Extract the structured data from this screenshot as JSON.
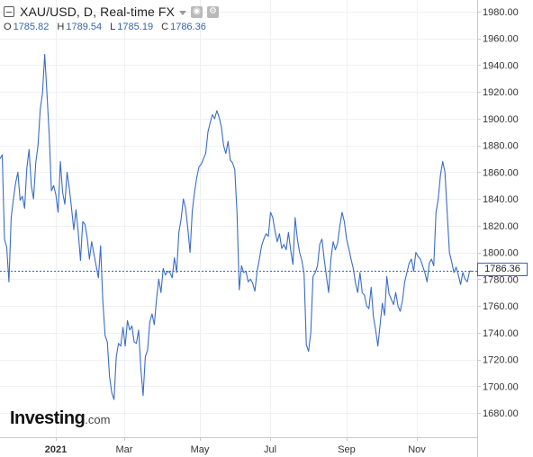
{
  "header": {
    "title": "XAU/USD, D, Real-time FX",
    "buttons": [
      {
        "icon": "eye-icon"
      },
      {
        "icon": "gear-icon"
      }
    ]
  },
  "ohlc": [
    {
      "key": "O",
      "value": "1785.82"
    },
    {
      "key": "H",
      "value": "1789.54"
    },
    {
      "key": "L",
      "value": "1785.19"
    },
    {
      "key": "C",
      "value": "1786.36"
    }
  ],
  "logo": {
    "main": "Investing",
    "suffix": ".com"
  },
  "last_price": "1786.36",
  "colors": {
    "line": "#3a6cc8",
    "price_line": "#3a63a7",
    "grid": "#eef0f3",
    "axis_text": "#333333"
  },
  "chart_data": {
    "type": "line",
    "x_tick_labels": [
      "2021",
      "Mar",
      "May",
      "Jul",
      "Sep",
      "Nov"
    ],
    "y_ticks": [
      1680,
      1700,
      1720,
      1740,
      1760,
      1780,
      1800,
      1820,
      1840,
      1860,
      1880,
      1900,
      1920,
      1940,
      1960,
      1980
    ],
    "y_tick_labels": [
      "1680.00",
      "1700.00",
      "1720.00",
      "1740.00",
      "1760.00",
      "1780.00",
      "1800.00",
      "1820.00",
      "1840.00",
      "1860.00",
      "1880.00",
      "1900.00",
      "1920.00",
      "1940.00",
      "1960.00",
      "1980.00"
    ],
    "ylim": [
      1668,
      1990
    ],
    "grid": true,
    "last_value": 1786.36,
    "series": [
      {
        "values": [
          1870,
          1873,
          1810,
          1804,
          1778,
          1826,
          1840,
          1852,
          1860,
          1839,
          1842,
          1833,
          1863,
          1877,
          1850,
          1840,
          1867,
          1880,
          1907,
          1919,
          1948,
          1919,
          1888,
          1846,
          1850,
          1843,
          1830,
          1868,
          1845,
          1836,
          1860,
          1848,
          1833,
          1817,
          1832,
          1815,
          1794,
          1823,
          1821,
          1811,
          1795,
          1808,
          1799,
          1790,
          1781,
          1805,
          1763,
          1738,
          1733,
          1707,
          1695,
          1690,
          1722,
          1732,
          1730,
          1744,
          1730,
          1749,
          1742,
          1745,
          1733,
          1732,
          1742,
          1713,
          1693,
          1722,
          1727,
          1748,
          1754,
          1746,
          1765,
          1780,
          1770,
          1788,
          1783,
          1786,
          1785,
          1781,
          1796,
          1785,
          1815,
          1825,
          1840,
          1833,
          1818,
          1800,
          1831,
          1845,
          1856,
          1864,
          1866,
          1870,
          1874,
          1890,
          1897,
          1903,
          1900,
          1906,
          1901,
          1894,
          1880,
          1874,
          1883,
          1869,
          1867,
          1862,
          1830,
          1772,
          1790,
          1785,
          1786,
          1778,
          1780,
          1777,
          1771,
          1786,
          1795,
          1805,
          1810,
          1814,
          1812,
          1830,
          1826,
          1816,
          1808,
          1814,
          1803,
          1806,
          1802,
          1815,
          1802,
          1791,
          1826,
          1810,
          1800,
          1794,
          1784,
          1731,
          1726,
          1740,
          1782,
          1785,
          1790,
          1806,
          1810,
          1795,
          1782,
          1770,
          1795,
          1808,
          1802,
          1807,
          1820,
          1830,
          1823,
          1810,
          1803,
          1795,
          1788,
          1777,
          1770,
          1785,
          1770,
          1768,
          1760,
          1758,
          1774,
          1752,
          1742,
          1730,
          1746,
          1762,
          1753,
          1782,
          1769,
          1765,
          1761,
          1770,
          1760,
          1756,
          1764,
          1778,
          1785,
          1792,
          1795,
          1786,
          1800,
          1797,
          1795,
          1790,
          1785,
          1778,
          1792,
          1795,
          1790,
          1830,
          1840,
          1858,
          1868,
          1860,
          1830,
          1800,
          1793,
          1785,
          1789,
          1783,
          1776,
          1785,
          1780,
          1778,
          1786,
          1786
        ]
      }
    ]
  }
}
